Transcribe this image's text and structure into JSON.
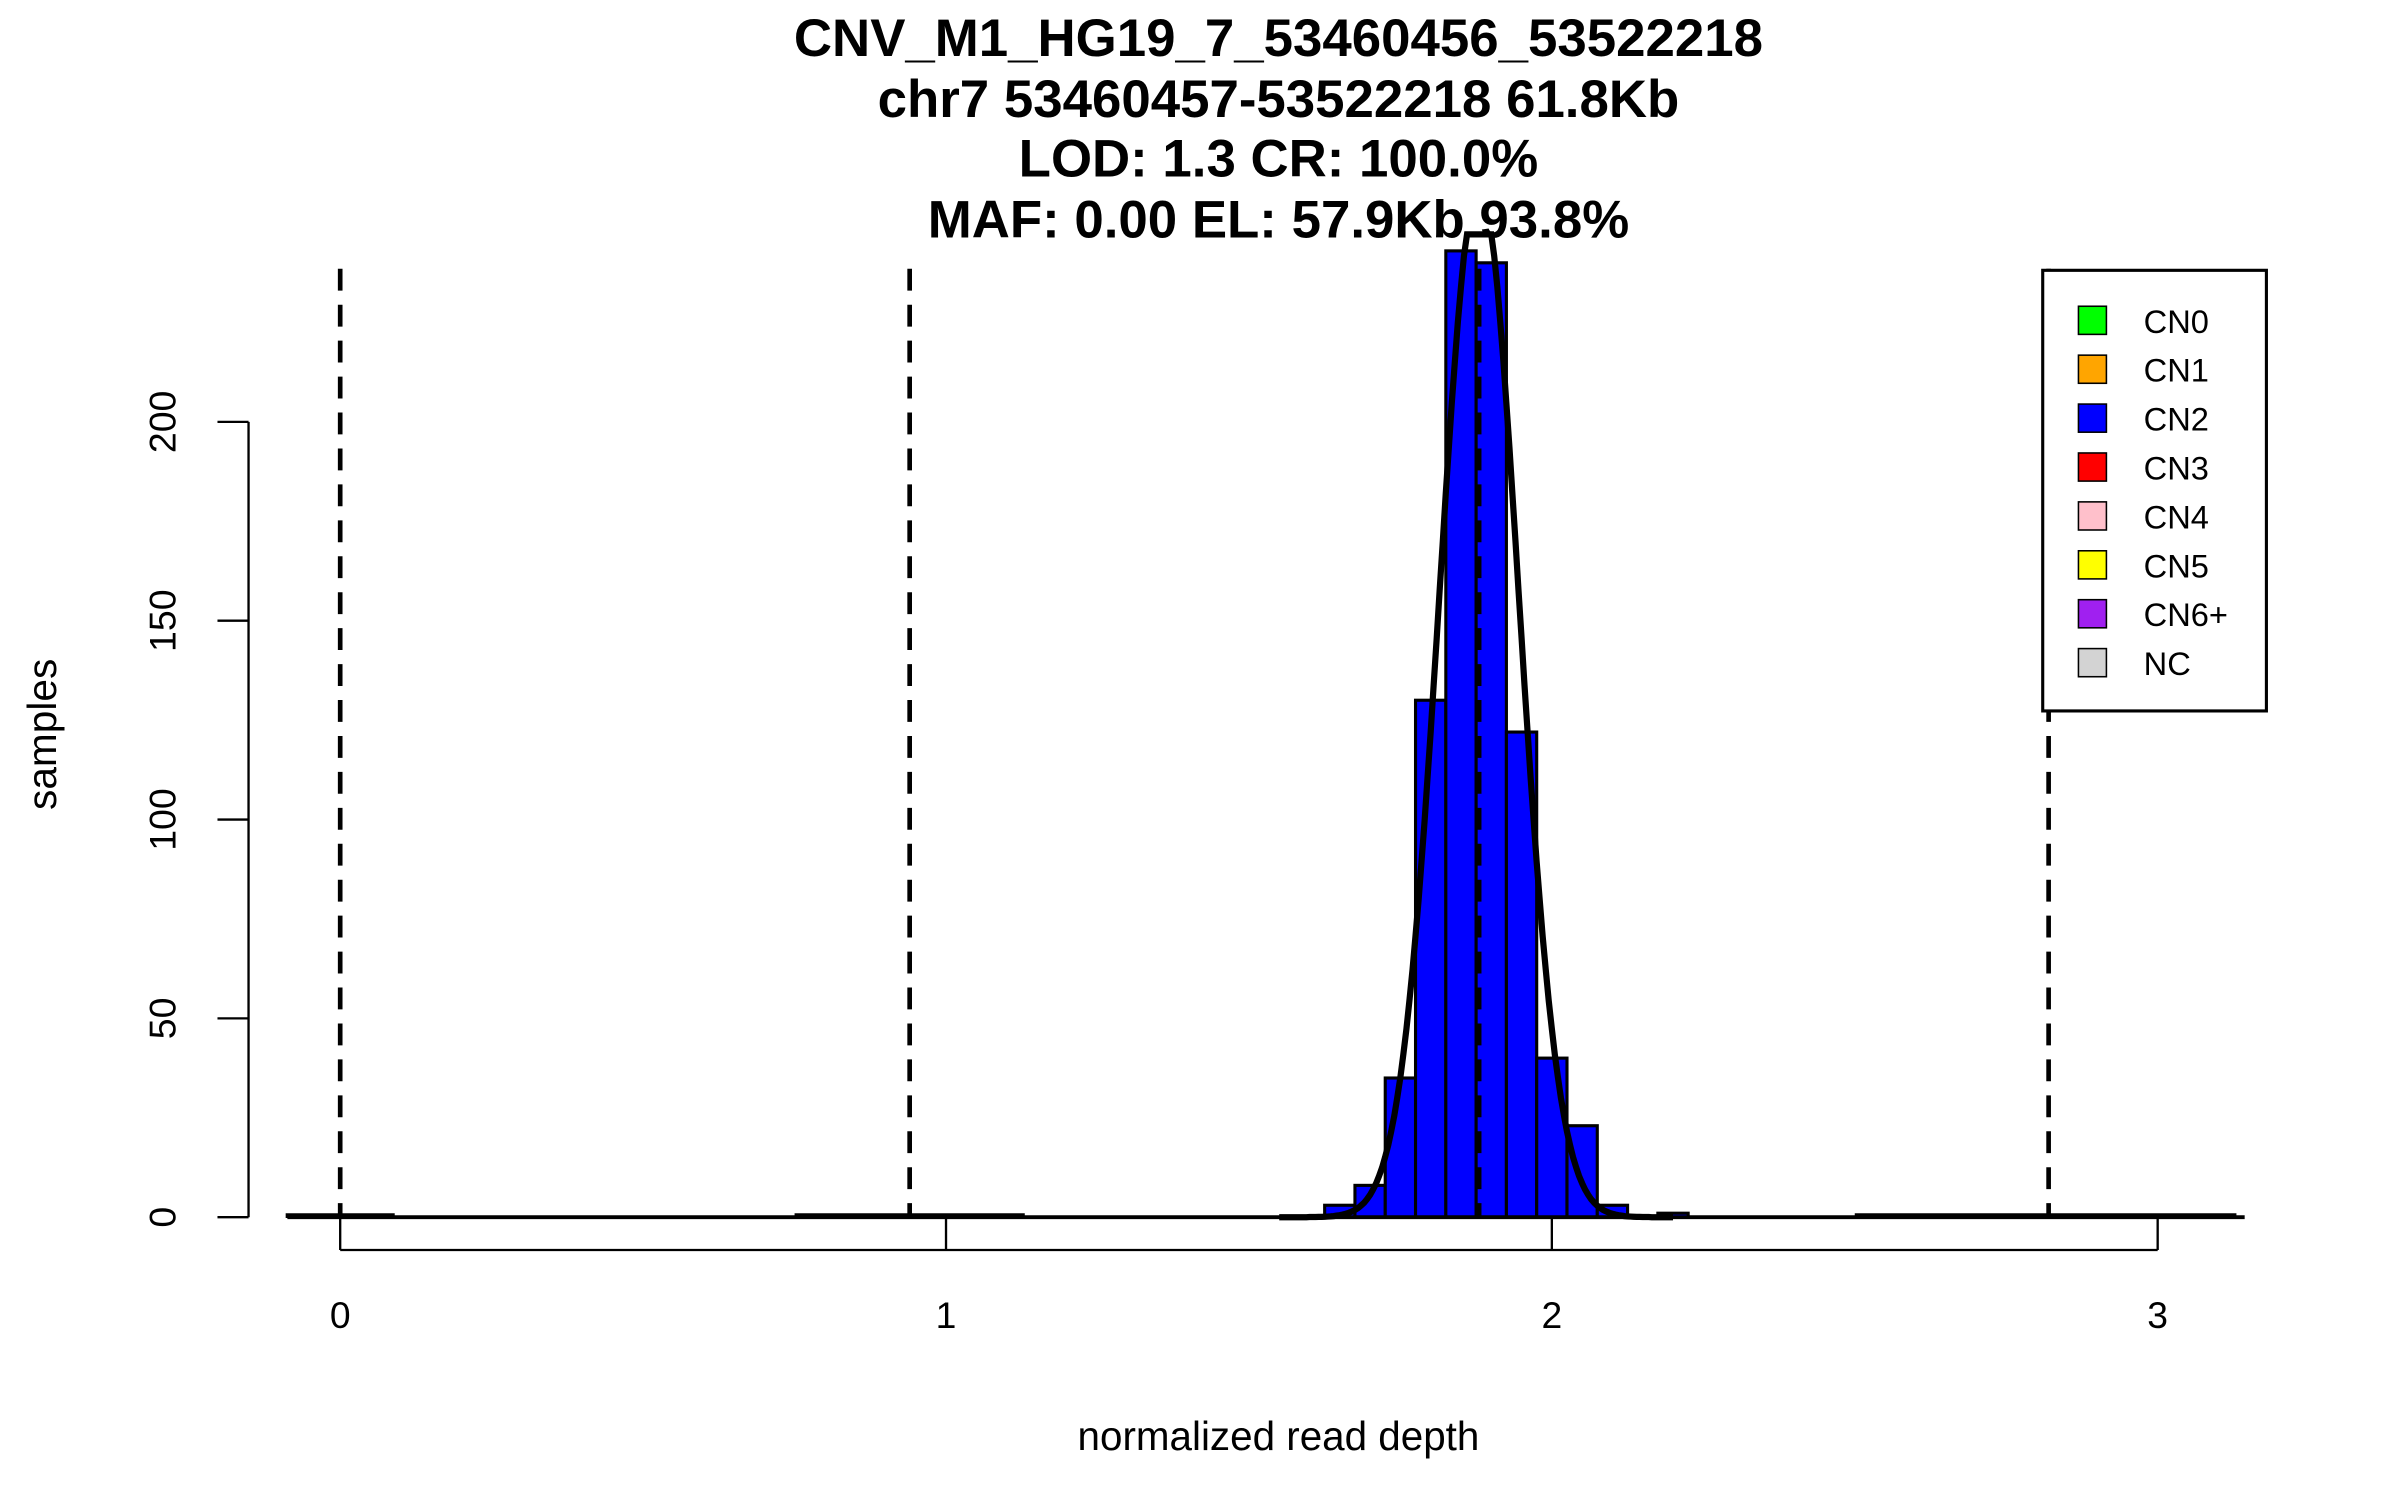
{
  "chart_data": {
    "type": "bar",
    "title_lines": [
      "CNV_M1_HG19_7_53460456_53522218",
      "chr7 53460457-53522218 61.8Kb",
      "LOD: 1.3 CR: 100.0%",
      "MAF: 0.00 EL: 57.9Kb 93.8%"
    ],
    "xlabel": "normalized read depth",
    "ylabel": "samples",
    "xlim": [
      -0.09,
      3.13
    ],
    "ylim": [
      0,
      240
    ],
    "xticks": [
      0,
      1,
      2,
      3
    ],
    "yticks": [
      0,
      50,
      100,
      150,
      200
    ],
    "bin_width": 0.05,
    "bins": [
      {
        "start": 1.625,
        "count": 3
      },
      {
        "start": 1.675,
        "count": 8
      },
      {
        "start": 1.725,
        "count": 35
      },
      {
        "start": 1.775,
        "count": 130
      },
      {
        "start": 1.825,
        "count": 243
      },
      {
        "start": 1.875,
        "count": 240
      },
      {
        "start": 1.925,
        "count": 122
      },
      {
        "start": 1.975,
        "count": 40
      },
      {
        "start": 2.025,
        "count": 23
      },
      {
        "start": 2.075,
        "count": 3
      },
      {
        "start": 2.175,
        "count": 1
      }
    ],
    "bar_color": "#0000FF",
    "cn_thresholds": [
      0,
      0.94,
      1.88,
      2.82
    ],
    "fit_curve": {
      "mean": 1.88,
      "sd": 0.065,
      "total": 848
    },
    "legend": {
      "position": "top-right",
      "items": [
        {
          "label": "CN0",
          "color": "#00FF00"
        },
        {
          "label": "CN1",
          "color": "#FFA500"
        },
        {
          "label": "CN2",
          "color": "#0000FF"
        },
        {
          "label": "CN3",
          "color": "#FF0000"
        },
        {
          "label": "CN4",
          "color": "#FFC0CB"
        },
        {
          "label": "CN5",
          "color": "#FFFF00"
        },
        {
          "label": "CN6+",
          "color": "#A020F0"
        },
        {
          "label": "NC",
          "color": "#D3D3D3"
        }
      ]
    }
  }
}
